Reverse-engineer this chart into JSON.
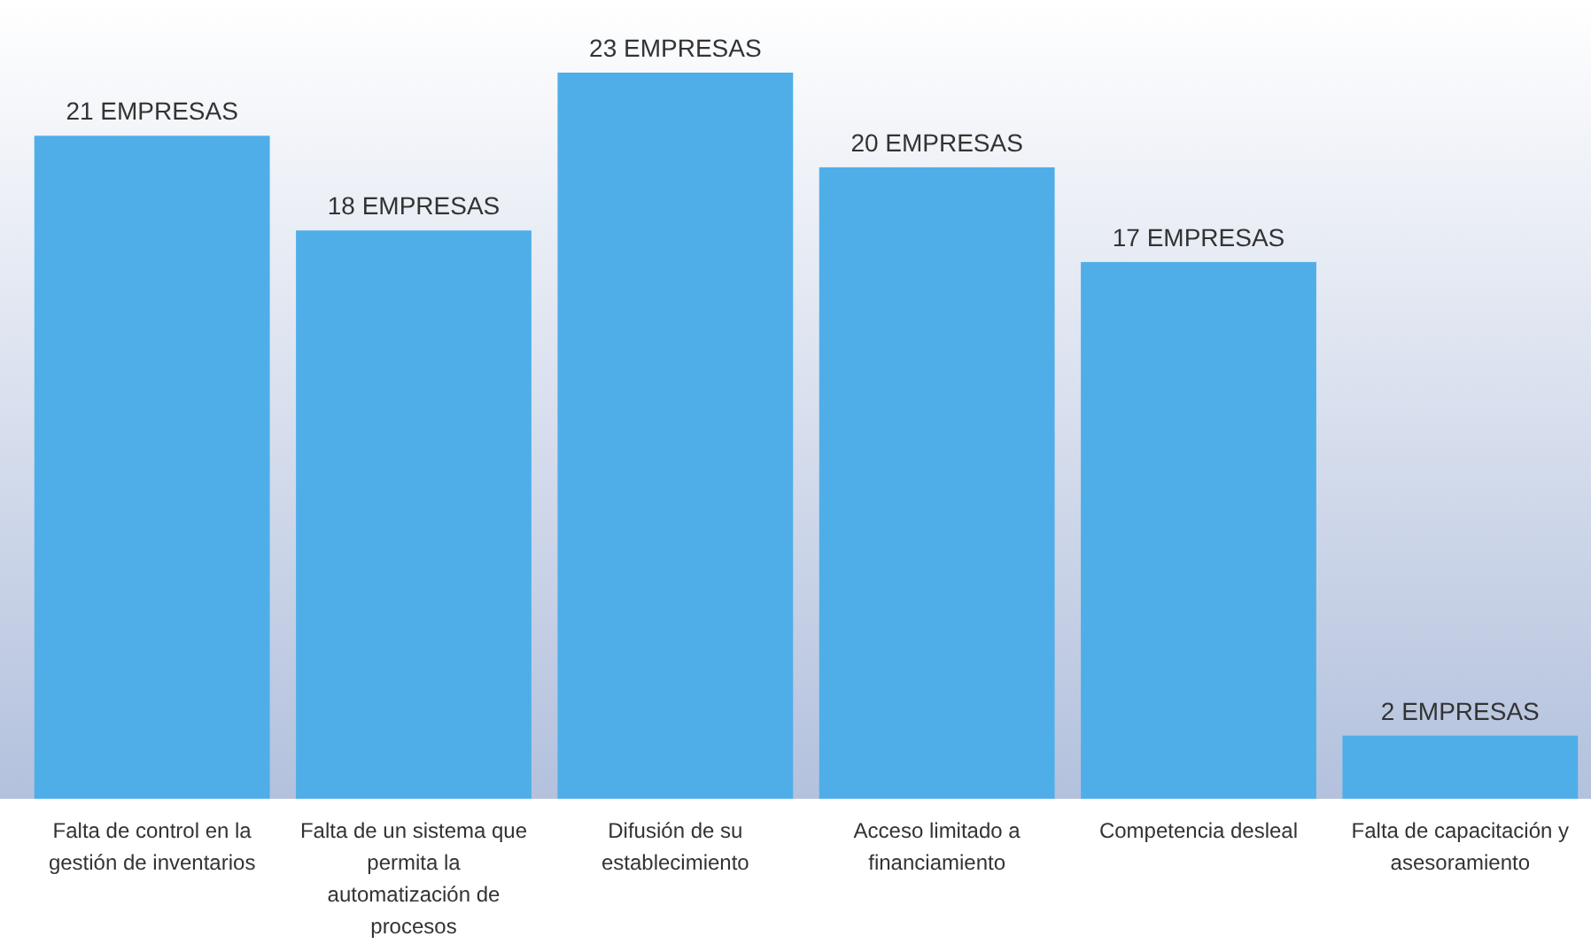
{
  "chart_data": {
    "type": "bar",
    "categories": [
      "Falta de control en la gestión de inventarios",
      "Falta de un sistema que permita la automatización de procesos",
      "Difusión de su establecimiento",
      "Acceso limitado a financiamiento",
      "Competencia desleal",
      "Falta de capacitación y asesoramiento"
    ],
    "values": [
      21,
      18,
      23,
      20,
      17,
      2
    ],
    "value_labels": [
      "21 EMPRESAS",
      "18 EMPRESAS",
      "23 EMPRESAS",
      "20 EMPRESAS",
      "17 EMPRESAS",
      "2 EMPRESAS"
    ],
    "color": "#4faee8"
  }
}
